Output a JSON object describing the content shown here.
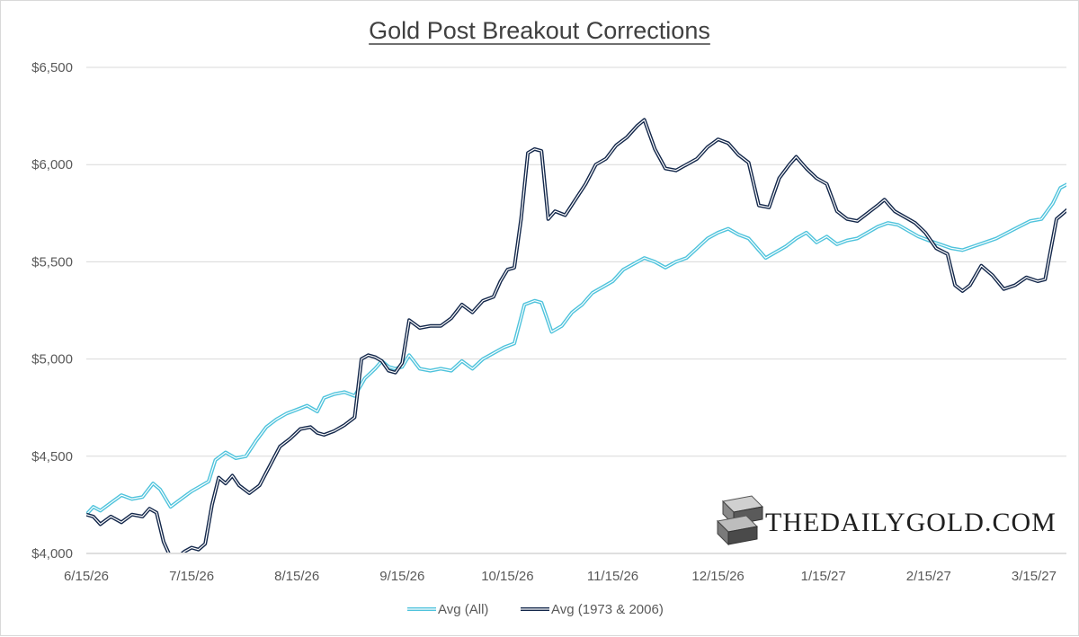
{
  "chart_data": {
    "type": "line",
    "title": "Gold Post Breakout Corrections",
    "xlabel": "",
    "ylabel": "",
    "x_ticks": [
      "6/15/26",
      "7/15/26",
      "8/15/26",
      "9/15/26",
      "10/15/26",
      "11/15/26",
      "12/15/26",
      "1/15/27",
      "2/15/27",
      "3/15/27"
    ],
    "y_ticks": [
      "$4,000",
      "$4,500",
      "$5,000",
      "$5,500",
      "$6,000",
      "$6,500"
    ],
    "ylim": [
      4000,
      6500
    ],
    "xlim": [
      "2026-06-15",
      "2027-03-27"
    ],
    "grid": "horizontal",
    "legend": "bottom-center",
    "series": [
      {
        "name": "Avg (All)",
        "color": "#4fc3dc",
        "points": [
          [
            "2026-06-15",
            4200
          ],
          [
            "2026-06-17",
            4240
          ],
          [
            "2026-06-19",
            4220
          ],
          [
            "2026-06-22",
            4260
          ],
          [
            "2026-06-25",
            4300
          ],
          [
            "2026-06-28",
            4280
          ],
          [
            "2026-07-01",
            4290
          ],
          [
            "2026-07-04",
            4360
          ],
          [
            "2026-07-06",
            4330
          ],
          [
            "2026-07-09",
            4240
          ],
          [
            "2026-07-12",
            4280
          ],
          [
            "2026-07-15",
            4320
          ],
          [
            "2026-07-18",
            4350
          ],
          [
            "2026-07-20",
            4370
          ],
          [
            "2026-07-22",
            4480
          ],
          [
            "2026-07-25",
            4520
          ],
          [
            "2026-07-28",
            4490
          ],
          [
            "2026-07-31",
            4500
          ],
          [
            "2026-08-03",
            4580
          ],
          [
            "2026-08-06",
            4650
          ],
          [
            "2026-08-09",
            4690
          ],
          [
            "2026-08-12",
            4720
          ],
          [
            "2026-08-15",
            4740
          ],
          [
            "2026-08-18",
            4760
          ],
          [
            "2026-08-21",
            4730
          ],
          [
            "2026-08-23",
            4800
          ],
          [
            "2026-08-26",
            4820
          ],
          [
            "2026-08-29",
            4830
          ],
          [
            "2026-09-01",
            4810
          ],
          [
            "2026-09-04",
            4900
          ],
          [
            "2026-09-07",
            4950
          ],
          [
            "2026-09-09",
            4990
          ],
          [
            "2026-09-11",
            4960
          ],
          [
            "2026-09-13",
            4950
          ],
          [
            "2026-09-15",
            4960
          ],
          [
            "2026-09-17",
            5020
          ],
          [
            "2026-09-20",
            4950
          ],
          [
            "2026-09-23",
            4940
          ],
          [
            "2026-09-26",
            4950
          ],
          [
            "2026-09-29",
            4940
          ],
          [
            "2026-10-02",
            4990
          ],
          [
            "2026-10-05",
            4950
          ],
          [
            "2026-10-08",
            5000
          ],
          [
            "2026-10-11",
            5030
          ],
          [
            "2026-10-14",
            5060
          ],
          [
            "2026-10-17",
            5080
          ],
          [
            "2026-10-20",
            5280
          ],
          [
            "2026-10-23",
            5300
          ],
          [
            "2026-10-25",
            5290
          ],
          [
            "2026-10-28",
            5140
          ],
          [
            "2026-10-31",
            5170
          ],
          [
            "2026-11-03",
            5240
          ],
          [
            "2026-11-06",
            5280
          ],
          [
            "2026-11-09",
            5340
          ],
          [
            "2026-11-12",
            5370
          ],
          [
            "2026-11-15",
            5400
          ],
          [
            "2026-11-18",
            5460
          ],
          [
            "2026-11-21",
            5490
          ],
          [
            "2026-11-24",
            5520
          ],
          [
            "2026-11-27",
            5500
          ],
          [
            "2026-11-30",
            5470
          ],
          [
            "2026-12-03",
            5500
          ],
          [
            "2026-12-06",
            5520
          ],
          [
            "2026-12-09",
            5570
          ],
          [
            "2026-12-12",
            5620
          ],
          [
            "2026-12-15",
            5650
          ],
          [
            "2026-12-18",
            5670
          ],
          [
            "2026-12-21",
            5640
          ],
          [
            "2026-12-24",
            5620
          ],
          [
            "2026-12-27",
            5560
          ],
          [
            "2026-12-29",
            5520
          ],
          [
            "2027-01-01",
            5550
          ],
          [
            "2027-01-04",
            5580
          ],
          [
            "2027-01-07",
            5620
          ],
          [
            "2027-01-10",
            5650
          ],
          [
            "2027-01-13",
            5600
          ],
          [
            "2027-01-16",
            5630
          ],
          [
            "2027-01-19",
            5590
          ],
          [
            "2027-01-22",
            5610
          ],
          [
            "2027-01-25",
            5620
          ],
          [
            "2027-01-28",
            5650
          ],
          [
            "2027-01-31",
            5680
          ],
          [
            "2027-02-03",
            5700
          ],
          [
            "2027-02-06",
            5690
          ],
          [
            "2027-02-09",
            5660
          ],
          [
            "2027-02-12",
            5630
          ],
          [
            "2027-02-15",
            5610
          ],
          [
            "2027-02-18",
            5590
          ],
          [
            "2027-02-21",
            5570
          ],
          [
            "2027-02-24",
            5560
          ],
          [
            "2027-02-27",
            5580
          ],
          [
            "2027-03-02",
            5600
          ],
          [
            "2027-03-05",
            5620
          ],
          [
            "2027-03-08",
            5650
          ],
          [
            "2027-03-11",
            5680
          ],
          [
            "2027-03-14",
            5710
          ],
          [
            "2027-03-17",
            5720
          ],
          [
            "2027-03-20",
            5800
          ],
          [
            "2027-03-22",
            5880
          ],
          [
            "2027-03-24",
            5900
          ],
          [
            "2027-03-27",
            5940
          ]
        ]
      },
      {
        "name": "Avg (1973 & 2006)",
        "color": "#14284b",
        "points": [
          [
            "2026-06-15",
            4200
          ],
          [
            "2026-06-17",
            4190
          ],
          [
            "2026-06-19",
            4150
          ],
          [
            "2026-06-22",
            4190
          ],
          [
            "2026-06-25",
            4160
          ],
          [
            "2026-06-28",
            4200
          ],
          [
            "2026-07-01",
            4190
          ],
          [
            "2026-07-03",
            4230
          ],
          [
            "2026-07-05",
            4210
          ],
          [
            "2026-07-07",
            4060
          ],
          [
            "2026-07-09",
            3980
          ],
          [
            "2026-07-11",
            3980
          ],
          [
            "2026-07-13",
            4010
          ],
          [
            "2026-07-15",
            4030
          ],
          [
            "2026-07-17",
            4020
          ],
          [
            "2026-07-19",
            4050
          ],
          [
            "2026-07-21",
            4250
          ],
          [
            "2026-07-23",
            4390
          ],
          [
            "2026-07-25",
            4360
          ],
          [
            "2026-07-27",
            4400
          ],
          [
            "2026-07-29",
            4350
          ],
          [
            "2026-08-01",
            4310
          ],
          [
            "2026-08-04",
            4350
          ],
          [
            "2026-08-07",
            4450
          ],
          [
            "2026-08-10",
            4550
          ],
          [
            "2026-08-13",
            4590
          ],
          [
            "2026-08-16",
            4640
          ],
          [
            "2026-08-19",
            4650
          ],
          [
            "2026-08-21",
            4620
          ],
          [
            "2026-08-23",
            4610
          ],
          [
            "2026-08-26",
            4630
          ],
          [
            "2026-08-29",
            4660
          ],
          [
            "2026-09-01",
            4700
          ],
          [
            "2026-09-03",
            5000
          ],
          [
            "2026-09-05",
            5020
          ],
          [
            "2026-09-07",
            5010
          ],
          [
            "2026-09-09",
            4990
          ],
          [
            "2026-09-11",
            4940
          ],
          [
            "2026-09-13",
            4930
          ],
          [
            "2026-09-15",
            4980
          ],
          [
            "2026-09-17",
            5200
          ],
          [
            "2026-09-20",
            5160
          ],
          [
            "2026-09-23",
            5170
          ],
          [
            "2026-09-26",
            5170
          ],
          [
            "2026-09-29",
            5210
          ],
          [
            "2026-10-02",
            5280
          ],
          [
            "2026-10-05",
            5240
          ],
          [
            "2026-10-08",
            5300
          ],
          [
            "2026-10-11",
            5320
          ],
          [
            "2026-10-13",
            5400
          ],
          [
            "2026-10-15",
            5460
          ],
          [
            "2026-10-17",
            5470
          ],
          [
            "2026-10-19",
            5720
          ],
          [
            "2026-10-21",
            6060
          ],
          [
            "2026-10-23",
            6080
          ],
          [
            "2026-10-25",
            6070
          ],
          [
            "2026-10-27",
            5720
          ],
          [
            "2026-10-29",
            5760
          ],
          [
            "2026-11-01",
            5740
          ],
          [
            "2026-11-04",
            5820
          ],
          [
            "2026-11-07",
            5900
          ],
          [
            "2026-11-10",
            6000
          ],
          [
            "2026-11-13",
            6030
          ],
          [
            "2026-11-16",
            6100
          ],
          [
            "2026-11-19",
            6140
          ],
          [
            "2026-11-22",
            6200
          ],
          [
            "2026-11-24",
            6230
          ],
          [
            "2026-11-27",
            6080
          ],
          [
            "2026-11-30",
            5980
          ],
          [
            "2026-12-03",
            5970
          ],
          [
            "2026-12-06",
            6000
          ],
          [
            "2026-12-09",
            6030
          ],
          [
            "2026-12-12",
            6090
          ],
          [
            "2026-12-15",
            6130
          ],
          [
            "2026-12-18",
            6110
          ],
          [
            "2026-12-21",
            6050
          ],
          [
            "2026-12-24",
            6010
          ],
          [
            "2026-12-27",
            5790
          ],
          [
            "2026-12-30",
            5780
          ],
          [
            "2027-01-02",
            5930
          ],
          [
            "2027-01-05",
            6000
          ],
          [
            "2027-01-07",
            6040
          ],
          [
            "2027-01-10",
            5980
          ],
          [
            "2027-01-13",
            5930
          ],
          [
            "2027-01-16",
            5900
          ],
          [
            "2027-01-19",
            5760
          ],
          [
            "2027-01-22",
            5720
          ],
          [
            "2027-01-25",
            5710
          ],
          [
            "2027-01-28",
            5750
          ],
          [
            "2027-01-31",
            5790
          ],
          [
            "2027-02-02",
            5820
          ],
          [
            "2027-02-05",
            5760
          ],
          [
            "2027-02-08",
            5730
          ],
          [
            "2027-02-11",
            5700
          ],
          [
            "2027-02-14",
            5650
          ],
          [
            "2027-02-17",
            5570
          ],
          [
            "2027-02-20",
            5540
          ],
          [
            "2027-02-22",
            5380
          ],
          [
            "2027-02-24",
            5350
          ],
          [
            "2027-02-26",
            5380
          ],
          [
            "2027-03-01",
            5480
          ],
          [
            "2027-03-04",
            5430
          ],
          [
            "2027-03-07",
            5360
          ],
          [
            "2027-03-10",
            5380
          ],
          [
            "2027-03-13",
            5420
          ],
          [
            "2027-03-16",
            5400
          ],
          [
            "2027-03-18",
            5410
          ],
          [
            "2027-03-21",
            5720
          ],
          [
            "2027-03-24",
            5770
          ],
          [
            "2027-03-27",
            5750
          ]
        ]
      }
    ]
  },
  "watermark": {
    "text": "THEDAILYGOLD.COM",
    "icon": "gold-bars-logo-icon"
  }
}
